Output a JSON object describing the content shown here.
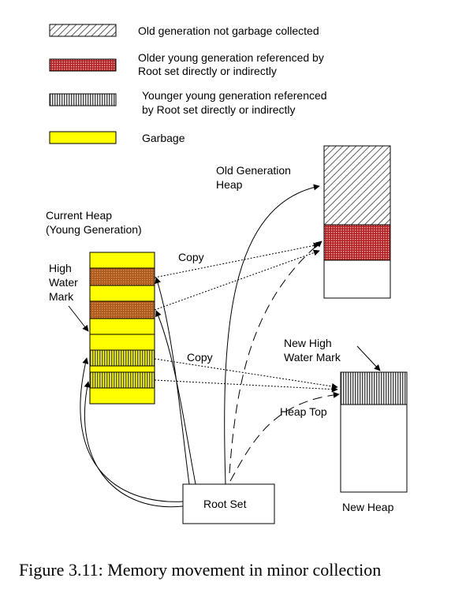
{
  "legend": {
    "old_not_collected": "Old generation not garbage collected",
    "older_young_line1": "Older young generation referenced by",
    "older_young_line2": "Root set directly or indirectly",
    "younger_young_line1": "Younger young  generation referenced",
    "younger_young_line2": "by Root set directly or indirectly",
    "garbage": "Garbage"
  },
  "labels": {
    "old_heap_line1": "Old Generation",
    "old_heap_line2": "Heap",
    "current_heap_line1": "Current Heap",
    "current_heap_line2": "(Young Generation)",
    "hwm_line1": "High",
    "hwm_line2": "Water",
    "hwm_line3": "Mark",
    "copy_upper": "Copy",
    "copy_lower": "Copy",
    "new_hwm_line1": "New High",
    "new_hwm_line2": "Water Mark",
    "heap_top": "Heap Top",
    "root_set": "Root Set",
    "new_heap": "New Heap"
  },
  "caption": "Figure 3.11: Memory movement in minor collection",
  "colors": {
    "garbage": "#ffff00",
    "older_young": "#b22222",
    "hatch": "#333333"
  }
}
